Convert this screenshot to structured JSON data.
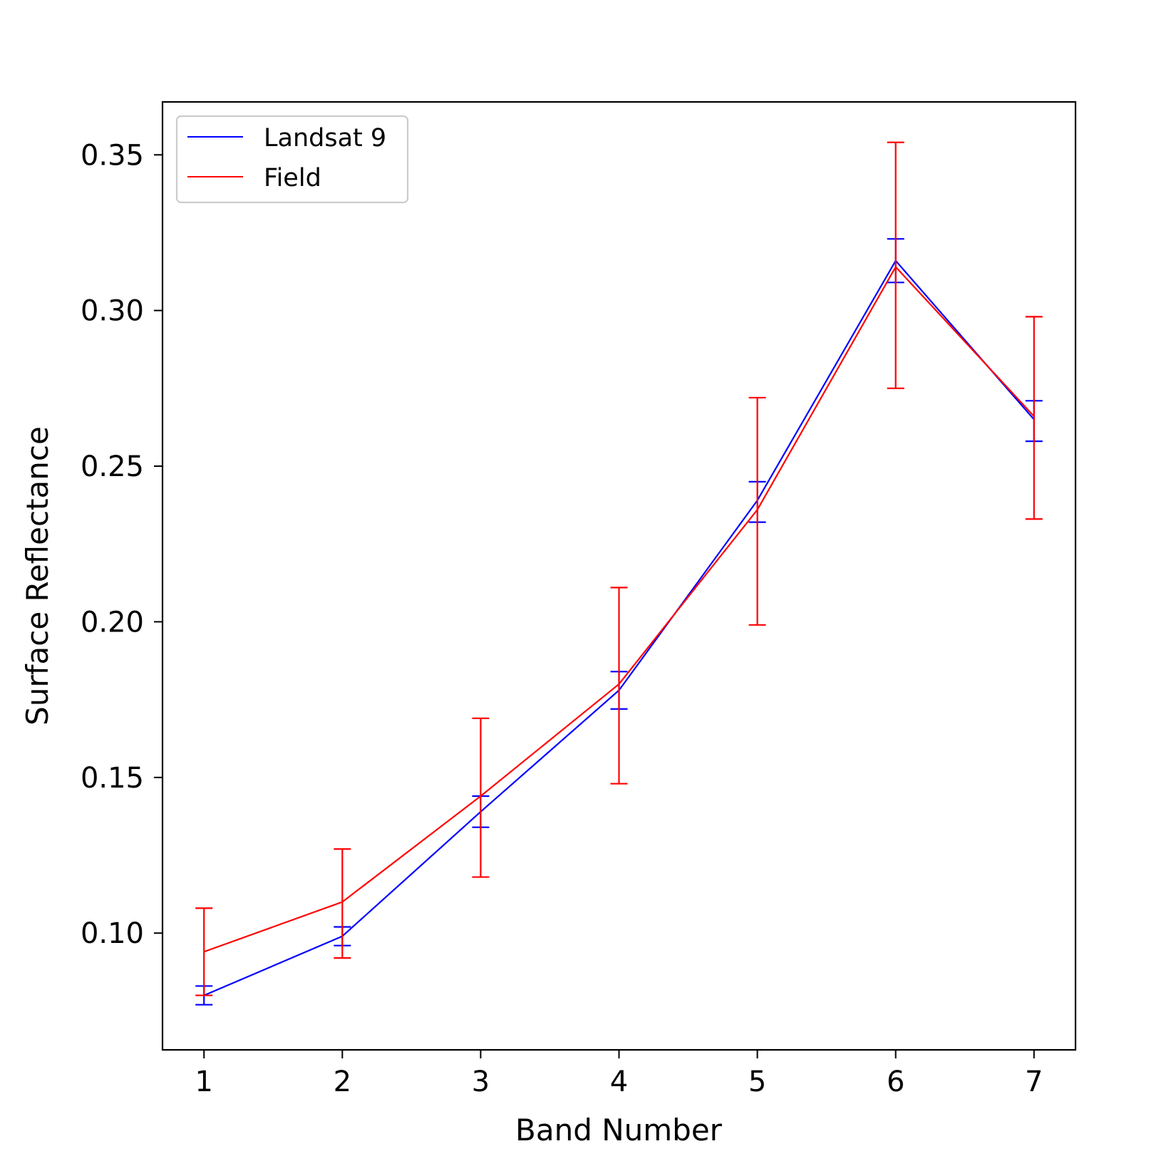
{
  "chart_data": {
    "type": "line",
    "title": "",
    "xlabel": "Band Number",
    "ylabel": "Surface Reflectance",
    "x": [
      1,
      2,
      3,
      4,
      5,
      6,
      7
    ],
    "xlim": [
      0.7,
      7.3
    ],
    "ylim": [
      0.0625,
      0.367
    ],
    "xticks": [
      1,
      2,
      3,
      4,
      5,
      6,
      7
    ],
    "yticks": [
      0.1,
      0.15,
      0.2,
      0.25,
      0.3,
      0.35
    ],
    "ytick_labels": [
      "0.10",
      "0.15",
      "0.20",
      "0.25",
      "0.30",
      "0.35"
    ],
    "grid": false,
    "legend_position": "top-left",
    "series": [
      {
        "name": "Landsat 9",
        "color": "#0000ff",
        "values": [
          0.08,
          0.099,
          0.139,
          0.178,
          0.239,
          0.316,
          0.265
        ],
        "err_low": [
          0.077,
          0.096,
          0.134,
          0.172,
          0.232,
          0.309,
          0.258
        ],
        "err_high": [
          0.083,
          0.102,
          0.144,
          0.184,
          0.245,
          0.323,
          0.271
        ]
      },
      {
        "name": "Field",
        "color": "#ff0000",
        "values": [
          0.094,
          0.11,
          0.144,
          0.18,
          0.236,
          0.314,
          0.266
        ],
        "err_low": [
          0.08,
          0.092,
          0.118,
          0.148,
          0.199,
          0.275,
          0.233
        ],
        "err_high": [
          0.108,
          0.127,
          0.169,
          0.211,
          0.272,
          0.354,
          0.298
        ]
      }
    ]
  }
}
